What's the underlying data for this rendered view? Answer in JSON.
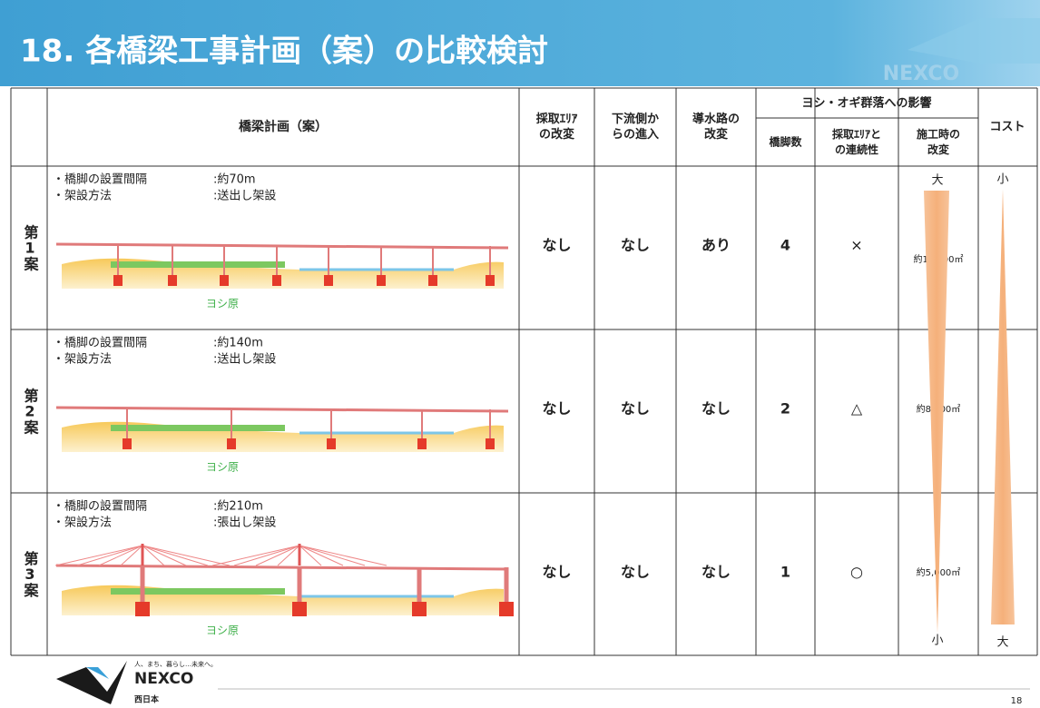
{
  "header": {
    "title": "18. 各橋梁工事計画（案）の比較検討",
    "logo": "NEXCO"
  },
  "table": {
    "plan_header": "橋梁計画（案）",
    "columns": [
      {
        "lines": [
          "採取ｴﾘｱ",
          "の改変"
        ]
      },
      {
        "lines": [
          "下流側か",
          "らの進入"
        ]
      },
      {
        "lines": [
          "導水路の",
          "改変"
        ]
      }
    ],
    "group": {
      "title": "ヨシ・オギ群落への影響",
      "columns": [
        {
          "lines": [
            "橋脚数"
          ]
        },
        {
          "lines": [
            "採取ｴﾘｱと",
            "の連続性"
          ]
        },
        {
          "lines": [
            "施工時の",
            "改変"
          ]
        }
      ]
    },
    "cost_header": "コスト",
    "rows": [
      {
        "label": "第1案",
        "spacing_label": "・橋脚の設置間隔",
        "spacing": ":約70m",
        "method_label": "・架設方法",
        "method": ":送出し架設",
        "reed": "ヨシ原",
        "cells": [
          "なし",
          "なし",
          "あり",
          "4",
          "×"
        ],
        "area": "約12,000㎡"
      },
      {
        "label": "第2案",
        "spacing_label": "・橋脚の設置間隔",
        "spacing": ":約140m",
        "method_label": "・架設方法",
        "method": ":送出し架設",
        "reed": "ヨシ原",
        "cells": [
          "なし",
          "なし",
          "なし",
          "2",
          "△"
        ],
        "area": "約8,000㎡"
      },
      {
        "label": "第3案",
        "spacing_label": "・橋脚の設置間隔",
        "spacing": ":約210m",
        "method_label": "・架設方法",
        "method": ":張出し架設",
        "reed": "ヨシ原",
        "cells": [
          "なし",
          "なし",
          "なし",
          "1",
          "○"
        ],
        "area": "約5,000㎡"
      }
    ],
    "impact_scale": {
      "top": "大",
      "bottom": "小"
    },
    "cost_scale": {
      "top": "小",
      "bottom": "大"
    }
  },
  "footer": {
    "tagline": "人、まち、暮らし…未来へ。",
    "logo": "NEXCO",
    "region": "西日本",
    "page": "18"
  }
}
